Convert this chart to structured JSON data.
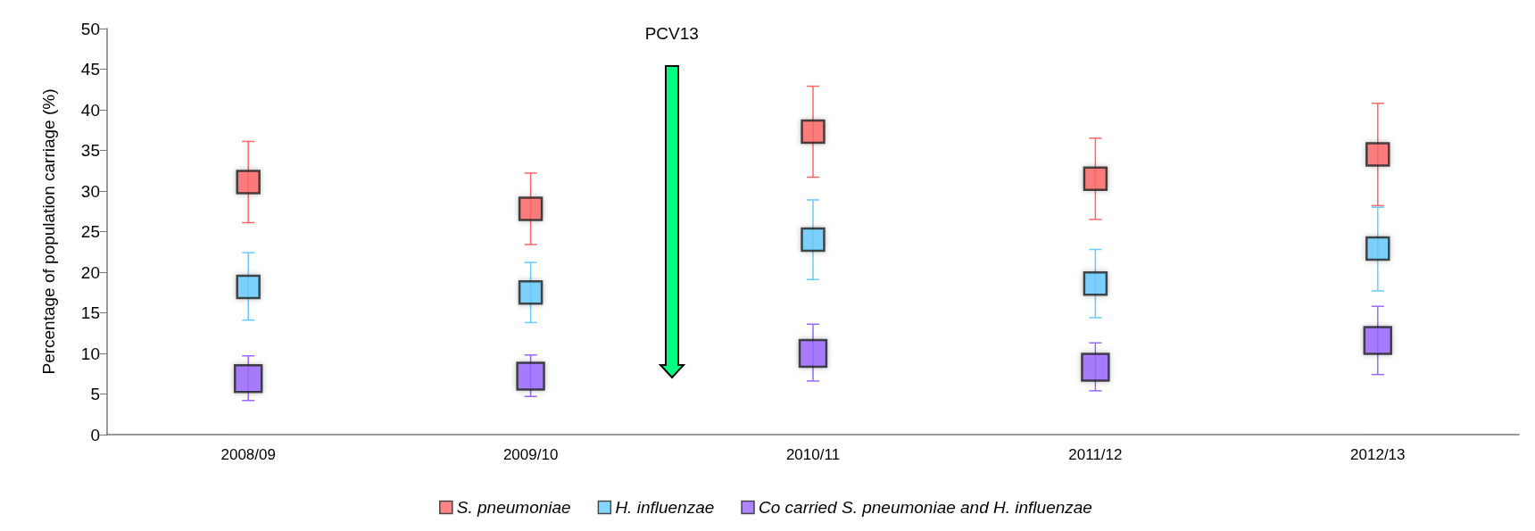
{
  "chart_data": {
    "type": "scatter",
    "ylabel": "Percentage of population carriage (%)",
    "categories": [
      "2008/09",
      "2009/10",
      "2010/11",
      "2011/12",
      "2012/13"
    ],
    "series": [
      {
        "name": "S. pneumoniae",
        "color": "#ff6666",
        "values": [
          31.1,
          27.8,
          37.3,
          31.5,
          34.5
        ],
        "errors": [
          [
            26.1,
            36.1
          ],
          [
            23.4,
            32.2
          ],
          [
            31.7,
            42.9
          ],
          [
            26.5,
            36.5
          ],
          [
            28.2,
            40.8
          ]
        ]
      },
      {
        "name": "H. influenzae",
        "color": "#66ccff",
        "values": [
          18.2,
          17.5,
          24.0,
          18.6,
          22.9
        ],
        "errors": [
          [
            14.1,
            22.4
          ],
          [
            13.8,
            21.2
          ],
          [
            19.1,
            28.9
          ],
          [
            14.4,
            22.8
          ],
          [
            17.7,
            28.0
          ]
        ]
      },
      {
        "name": "Co carried S. pneumoniae and H. influenzae",
        "color": "#9966ff",
        "values": [
          6.9,
          7.2,
          10.0,
          8.3,
          11.6
        ],
        "errors": [
          [
            4.2,
            9.7
          ],
          [
            4.7,
            9.8
          ],
          [
            6.6,
            13.6
          ],
          [
            5.4,
            11.3
          ],
          [
            7.4,
            15.8
          ]
        ]
      }
    ],
    "annotations": [
      "PCV13"
    ],
    "ylim": [
      0,
      50
    ],
    "yticks": [
      0,
      5,
      10,
      15,
      20,
      25,
      30,
      35,
      40,
      45,
      50
    ],
    "marker": "square",
    "grid": false,
    "legend": "bottom"
  }
}
